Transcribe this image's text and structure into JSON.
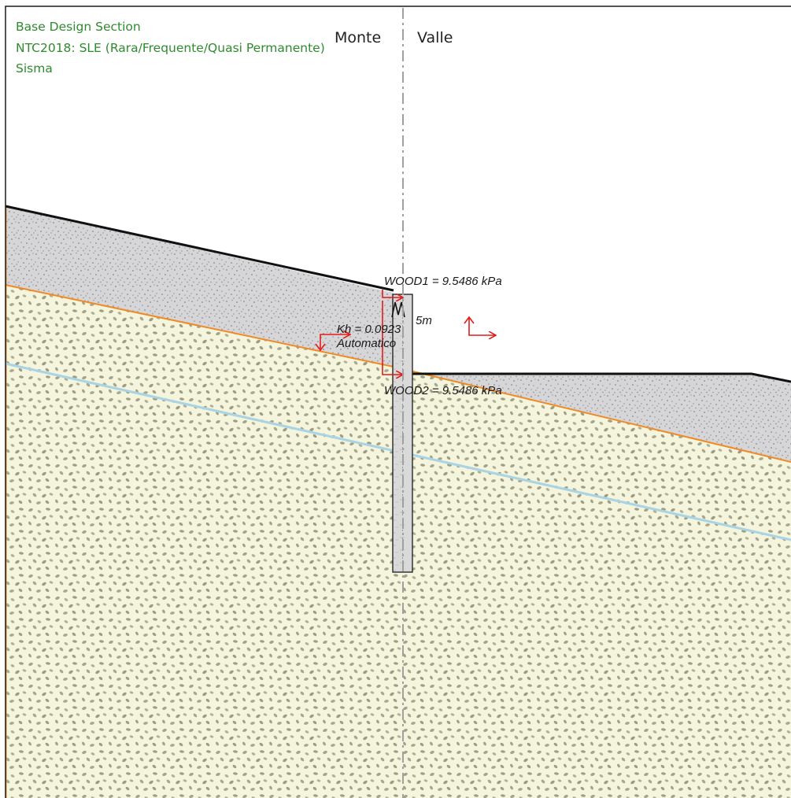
{
  "header": {
    "line1": "Base Design Section",
    "line2": "NTC2018: SLE (Rara/Frequente/Quasi Permanente)",
    "line3": "Sisma",
    "color": "#2e8b2e"
  },
  "sides": {
    "left": "Monte",
    "right": "Valle"
  },
  "loads": {
    "wood1": "WOOD1 = 9.5486 kPa",
    "wood2": "WOOD2 = 9.5486 kPa"
  },
  "wall": {
    "depth_label": "5m"
  },
  "seismic": {
    "kh_label": "Kh = 0.0923",
    "mode_label": "Automatico"
  },
  "colors": {
    "ground_line": "#111111",
    "layer_boundary": "#f08a24",
    "water_table": "#a8d4e6",
    "axis": "#a0a0a0",
    "arrow": "#e21b1b",
    "upper_soil": "#d6d6d8",
    "lower_soil": "#f5f4dd",
    "wall_fill": "#d9d9d9"
  }
}
